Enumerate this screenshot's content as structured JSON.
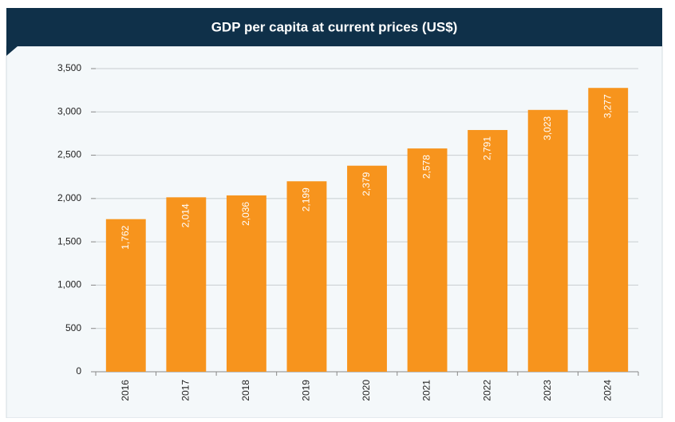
{
  "chart_data": {
    "type": "bar",
    "title": "GDP per capita at current prices (US$)",
    "categories": [
      "2016",
      "2017",
      "2018",
      "2019",
      "2020",
      "2021",
      "2022",
      "2023",
      "2024"
    ],
    "values": [
      1762,
      2014,
      2036,
      2199,
      2379,
      2578,
      2791,
      3023,
      3277
    ],
    "value_labels": [
      "1,762",
      "2,014",
      "2,036",
      "2,199",
      "2,379",
      "2,578",
      "2,791",
      "3,023",
      "3,277"
    ],
    "color": "#f7941d",
    "ylim": [
      0,
      3500
    ],
    "yticks": [
      0,
      {
        "value": 500,
        "label": "500"
      },
      {
        "value": 1000,
        "label": "1,000"
      },
      {
        "value": 1500,
        "label": "1,500"
      },
      {
        "value": 2000,
        "label": "2,000"
      },
      {
        "value": 2500,
        "label": "2,500"
      },
      {
        "value": 3000,
        "label": "3,000"
      },
      {
        "value": 3500,
        "label": "3,500"
      }
    ],
    "grid": true
  }
}
